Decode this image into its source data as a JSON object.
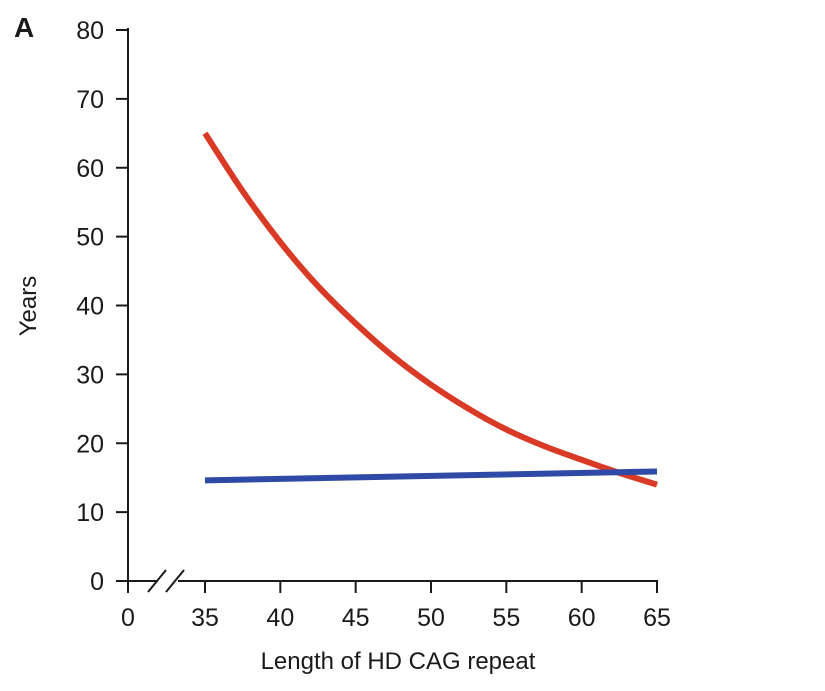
{
  "panel_label": "A",
  "chart_data": {
    "type": "line",
    "title": "",
    "xlabel": "Length of HD CAG repeat",
    "ylabel": "Years",
    "xlim": [
      0,
      65
    ],
    "ylim": [
      0,
      80
    ],
    "x_axis_break": true,
    "x_ticks": [
      0,
      35,
      40,
      45,
      50,
      55,
      60,
      65
    ],
    "y_ticks": [
      0,
      10,
      20,
      30,
      40,
      50,
      60,
      70,
      80
    ],
    "grid": false,
    "series": [
      {
        "color": "#d93a26",
        "x": [
          35,
          37.5,
          40,
          42.5,
          45,
          47.5,
          50,
          52.5,
          55,
          57.5,
          60,
          62.5,
          65
        ],
        "y": [
          65,
          56.6,
          49.2,
          42.8,
          37.4,
          32.6,
          28.5,
          25.0,
          22.0,
          19.6,
          17.6,
          15.7,
          14
        ]
      },
      {
        "color": "#2e4aa6",
        "x": [
          35,
          65
        ],
        "y": [
          14.6,
          15.9
        ]
      }
    ]
  }
}
